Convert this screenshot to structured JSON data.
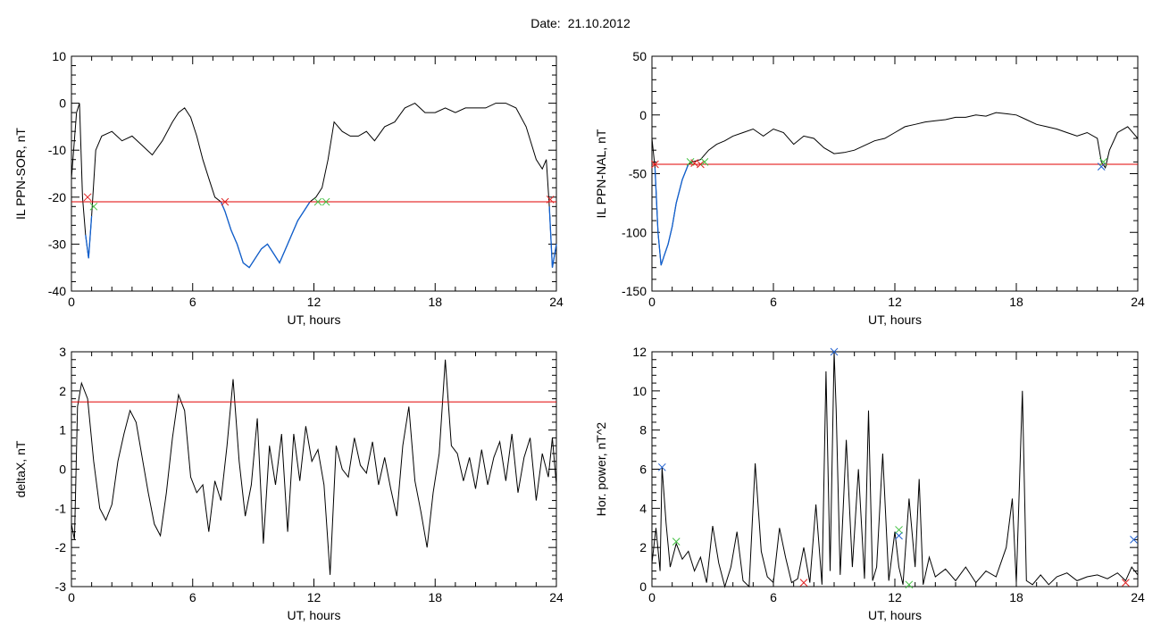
{
  "page": {
    "title_label": "Date:",
    "title_date": "21.10.2012"
  },
  "colors": {
    "trace": "#000000",
    "threshold": "#e00000",
    "negative_segment": "#1060d0",
    "marker_red": "#e02020",
    "marker_green": "#40c040",
    "marker_blue": "#2060d0"
  },
  "chart_data": [
    {
      "type": "line",
      "ylabel": "IL PPN-SOR, nT",
      "xlabel": "UT, hours",
      "xlim": [
        0,
        24
      ],
      "ylim": [
        -40,
        10
      ],
      "xticks": [
        0,
        6,
        12,
        18,
        24
      ],
      "yticks": [
        -40,
        -30,
        -20,
        -10,
        0,
        10
      ],
      "threshold": -21,
      "x": [
        0,
        0.25,
        0.4,
        0.55,
        0.7,
        0.85,
        1.0,
        1.2,
        1.5,
        2.0,
        2.5,
        3.0,
        3.5,
        4.0,
        4.5,
        5.0,
        5.3,
        5.6,
        5.9,
        6.2,
        6.5,
        6.8,
        7.1,
        7.4,
        7.6,
        7.9,
        8.2,
        8.5,
        8.8,
        9.1,
        9.4,
        9.7,
        10.0,
        10.3,
        10.6,
        10.9,
        11.2,
        11.5,
        11.8,
        12.1,
        12.4,
        12.7,
        13.0,
        13.4,
        13.8,
        14.2,
        14.6,
        15.0,
        15.5,
        16.0,
        16.5,
        17.0,
        17.5,
        18.0,
        18.5,
        19.0,
        19.5,
        20.0,
        20.5,
        21.0,
        21.5,
        22.0,
        22.5,
        23.0,
        23.3,
        23.5,
        23.65,
        23.8,
        24.0
      ],
      "y": [
        -16,
        -2,
        0,
        -20,
        -28,
        -33,
        -24,
        -10,
        -7,
        -6,
        -8,
        -7,
        -9,
        -11,
        -8,
        -4,
        -2,
        -1,
        -3,
        -7,
        -12,
        -16,
        -20,
        -21,
        -23,
        -27,
        -30,
        -34,
        -35,
        -33,
        -31,
        -30,
        -32,
        -34,
        -31,
        -28,
        -25,
        -23,
        -21,
        -20,
        -18,
        -12,
        -4,
        -6,
        -7,
        -7,
        -6,
        -8,
        -5,
        -4,
        -1,
        0,
        -2,
        -2,
        -1,
        -2,
        -1,
        -1,
        -1,
        0,
        0,
        -1,
        -5,
        -12,
        -14,
        -12,
        -22,
        -35,
        -30
      ],
      "markers": [
        {
          "x": 0.8,
          "y": -20,
          "color": "red"
        },
        {
          "x": 1.1,
          "y": -22,
          "color": "green"
        },
        {
          "x": 7.6,
          "y": -21,
          "color": "red"
        },
        {
          "x": 12.2,
          "y": -21,
          "color": "green"
        },
        {
          "x": 12.6,
          "y": -21,
          "color": "green"
        },
        {
          "x": 23.7,
          "y": -20.5,
          "color": "red"
        }
      ]
    },
    {
      "type": "line",
      "ylabel": "IL PPN-NAL, nT",
      "xlabel": "UT, hours",
      "xlim": [
        0,
        24
      ],
      "ylim": [
        -150,
        50
      ],
      "xticks": [
        0,
        6,
        12,
        18,
        24
      ],
      "yticks": [
        -150,
        -100,
        -50,
        0,
        50
      ],
      "threshold": -42,
      "x": [
        0,
        0.15,
        0.3,
        0.45,
        0.6,
        0.8,
        1.0,
        1.2,
        1.5,
        1.8,
        2.0,
        2.4,
        2.8,
        3.2,
        3.6,
        4.0,
        4.5,
        5.0,
        5.5,
        6.0,
        6.5,
        7.0,
        7.5,
        8.0,
        8.5,
        9.0,
        9.5,
        10.0,
        10.5,
        11.0,
        11.5,
        12.0,
        12.5,
        13.0,
        13.5,
        14.0,
        14.5,
        15.0,
        15.5,
        16.0,
        16.5,
        17.0,
        17.5,
        18.0,
        18.5,
        19.0,
        19.5,
        20.0,
        20.5,
        21.0,
        21.5,
        22.0,
        22.2,
        22.4,
        22.6,
        23.0,
        23.5,
        24.0
      ],
      "y": [
        -20,
        -45,
        -100,
        -128,
        -120,
        -110,
        -95,
        -75,
        -55,
        -42,
        -40,
        -38,
        -30,
        -25,
        -22,
        -18,
        -15,
        -12,
        -18,
        -12,
        -15,
        -25,
        -18,
        -20,
        -28,
        -33,
        -32,
        -30,
        -26,
        -22,
        -20,
        -15,
        -10,
        -8,
        -6,
        -5,
        -4,
        -2,
        -2,
        0,
        -1,
        2,
        1,
        0,
        -4,
        -8,
        -10,
        -12,
        -15,
        -18,
        -15,
        -20,
        -40,
        -45,
        -30,
        -15,
        -10,
        -20
      ],
      "markers": [
        {
          "x": 0.15,
          "y": -42,
          "color": "red"
        },
        {
          "x": 1.9,
          "y": -40,
          "color": "green"
        },
        {
          "x": 2.1,
          "y": -41,
          "color": "red"
        },
        {
          "x": 2.4,
          "y": -42,
          "color": "red"
        },
        {
          "x": 2.6,
          "y": -40,
          "color": "green"
        },
        {
          "x": 22.2,
          "y": -44,
          "color": "blue"
        },
        {
          "x": 22.3,
          "y": -40,
          "color": "green"
        }
      ]
    },
    {
      "type": "line",
      "ylabel": "deltaX, nT",
      "xlabel": "UT, hours",
      "xlim": [
        0,
        24
      ],
      "ylim": [
        -3,
        3
      ],
      "xticks": [
        0,
        6,
        12,
        18,
        24
      ],
      "yticks": [
        -3,
        -2,
        -1,
        0,
        1,
        2,
        3
      ],
      "threshold": 1.72,
      "x": [
        0,
        0.15,
        0.3,
        0.5,
        0.8,
        1.1,
        1.4,
        1.7,
        2.0,
        2.3,
        2.6,
        2.9,
        3.2,
        3.5,
        3.8,
        4.1,
        4.4,
        4.7,
        5.0,
        5.3,
        5.6,
        5.9,
        6.2,
        6.5,
        6.8,
        7.1,
        7.4,
        7.7,
        8.0,
        8.3,
        8.6,
        8.9,
        9.2,
        9.5,
        9.8,
        10.1,
        10.4,
        10.7,
        11.0,
        11.3,
        11.6,
        11.9,
        12.2,
        12.5,
        12.8,
        13.1,
        13.4,
        13.7,
        14.0,
        14.3,
        14.6,
        14.9,
        15.2,
        15.5,
        15.8,
        16.1,
        16.4,
        16.7,
        17.0,
        17.3,
        17.6,
        17.9,
        18.2,
        18.5,
        18.8,
        19.1,
        19.4,
        19.7,
        20.0,
        20.3,
        20.6,
        20.9,
        21.2,
        21.5,
        21.8,
        22.1,
        22.4,
        22.7,
        23.0,
        23.3,
        23.6,
        23.8,
        24.0
      ],
      "y": [
        -1.4,
        -1.8,
        1.6,
        2.2,
        1.8,
        0.2,
        -1.0,
        -1.3,
        -0.9,
        0.2,
        0.9,
        1.5,
        1.2,
        0.3,
        -0.6,
        -1.4,
        -1.7,
        -0.6,
        0.8,
        1.9,
        1.5,
        -0.2,
        -0.6,
        -0.4,
        -1.6,
        -0.3,
        -0.8,
        0.6,
        2.3,
        0.2,
        -1.2,
        -0.4,
        1.3,
        -1.9,
        0.6,
        -0.4,
        0.9,
        -1.6,
        0.9,
        -0.3,
        1.1,
        0.2,
        0.5,
        -0.4,
        -2.7,
        0.6,
        0.0,
        -0.2,
        0.8,
        0.1,
        -0.1,
        0.7,
        -0.4,
        0.3,
        -0.5,
        -1.2,
        0.6,
        1.6,
        -0.3,
        -1.1,
        -2.0,
        -0.6,
        0.4,
        2.8,
        0.6,
        0.4,
        -0.3,
        0.3,
        -0.5,
        0.5,
        -0.4,
        0.3,
        0.7,
        -0.3,
        0.9,
        -0.6,
        0.3,
        0.8,
        -0.8,
        0.4,
        -0.2,
        0.8,
        -0.4
      ]
    },
    {
      "type": "line",
      "ylabel": "Hor. power, nT^2",
      "xlabel": "UT, hours",
      "xlim": [
        0,
        24
      ],
      "ylim": [
        0,
        12
      ],
      "xticks": [
        0,
        6,
        12,
        18,
        24
      ],
      "yticks": [
        0,
        2,
        4,
        6,
        8,
        10,
        12
      ],
      "x": [
        0,
        0.2,
        0.4,
        0.5,
        0.7,
        0.9,
        1.2,
        1.5,
        1.8,
        2.1,
        2.4,
        2.7,
        3.0,
        3.3,
        3.6,
        3.9,
        4.2,
        4.5,
        4.8,
        5.1,
        5.4,
        5.7,
        6.0,
        6.3,
        6.6,
        6.9,
        7.2,
        7.5,
        7.8,
        8.1,
        8.4,
        8.6,
        8.8,
        9.0,
        9.1,
        9.3,
        9.6,
        9.9,
        10.2,
        10.5,
        10.7,
        10.9,
        11.1,
        11.4,
        11.7,
        12.0,
        12.2,
        12.4,
        12.7,
        13.0,
        13.2,
        13.4,
        13.7,
        14.0,
        14.5,
        15.0,
        15.5,
        16.0,
        16.5,
        17.0,
        17.5,
        17.8,
        18.0,
        18.3,
        18.5,
        18.8,
        19.2,
        19.6,
        20.0,
        20.5,
        21.0,
        21.5,
        22.0,
        22.5,
        23.0,
        23.4,
        23.7,
        24.0
      ],
      "y": [
        1.2,
        3.0,
        0.8,
        6.1,
        3.2,
        1.0,
        2.2,
        1.4,
        1.8,
        0.8,
        1.5,
        0.2,
        3.1,
        1.2,
        0.0,
        1.0,
        2.8,
        0.3,
        0.0,
        6.3,
        1.8,
        0.5,
        0.2,
        3.0,
        1.5,
        0.2,
        0.4,
        2.0,
        0.2,
        4.2,
        0.1,
        11.0,
        0.8,
        12.0,
        9.0,
        0.6,
        7.5,
        1.0,
        6.0,
        0.4,
        9.0,
        0.3,
        1.0,
        6.8,
        0.3,
        2.8,
        1.0,
        0.1,
        4.5,
        1.0,
        5.5,
        0.1,
        1.5,
        0.5,
        0.9,
        0.3,
        1.0,
        0.2,
        0.8,
        0.5,
        2.0,
        4.5,
        0.2,
        10.0,
        0.3,
        0.1,
        0.6,
        0.1,
        0.5,
        0.7,
        0.3,
        0.5,
        0.6,
        0.4,
        0.7,
        0.3,
        1.0,
        0.6
      ],
      "markers": [
        {
          "x": 0.5,
          "y": 6.1,
          "color": "blue"
        },
        {
          "x": 1.2,
          "y": 2.3,
          "color": "green"
        },
        {
          "x": 7.5,
          "y": 0.2,
          "color": "red"
        },
        {
          "x": 9.0,
          "y": 12.0,
          "color": "blue"
        },
        {
          "x": 12.2,
          "y": 2.6,
          "color": "blue"
        },
        {
          "x": 12.2,
          "y": 2.9,
          "color": "green"
        },
        {
          "x": 12.7,
          "y": 0.1,
          "color": "green"
        },
        {
          "x": 23.4,
          "y": 0.2,
          "color": "red"
        },
        {
          "x": 23.8,
          "y": 2.4,
          "color": "blue"
        }
      ]
    }
  ]
}
